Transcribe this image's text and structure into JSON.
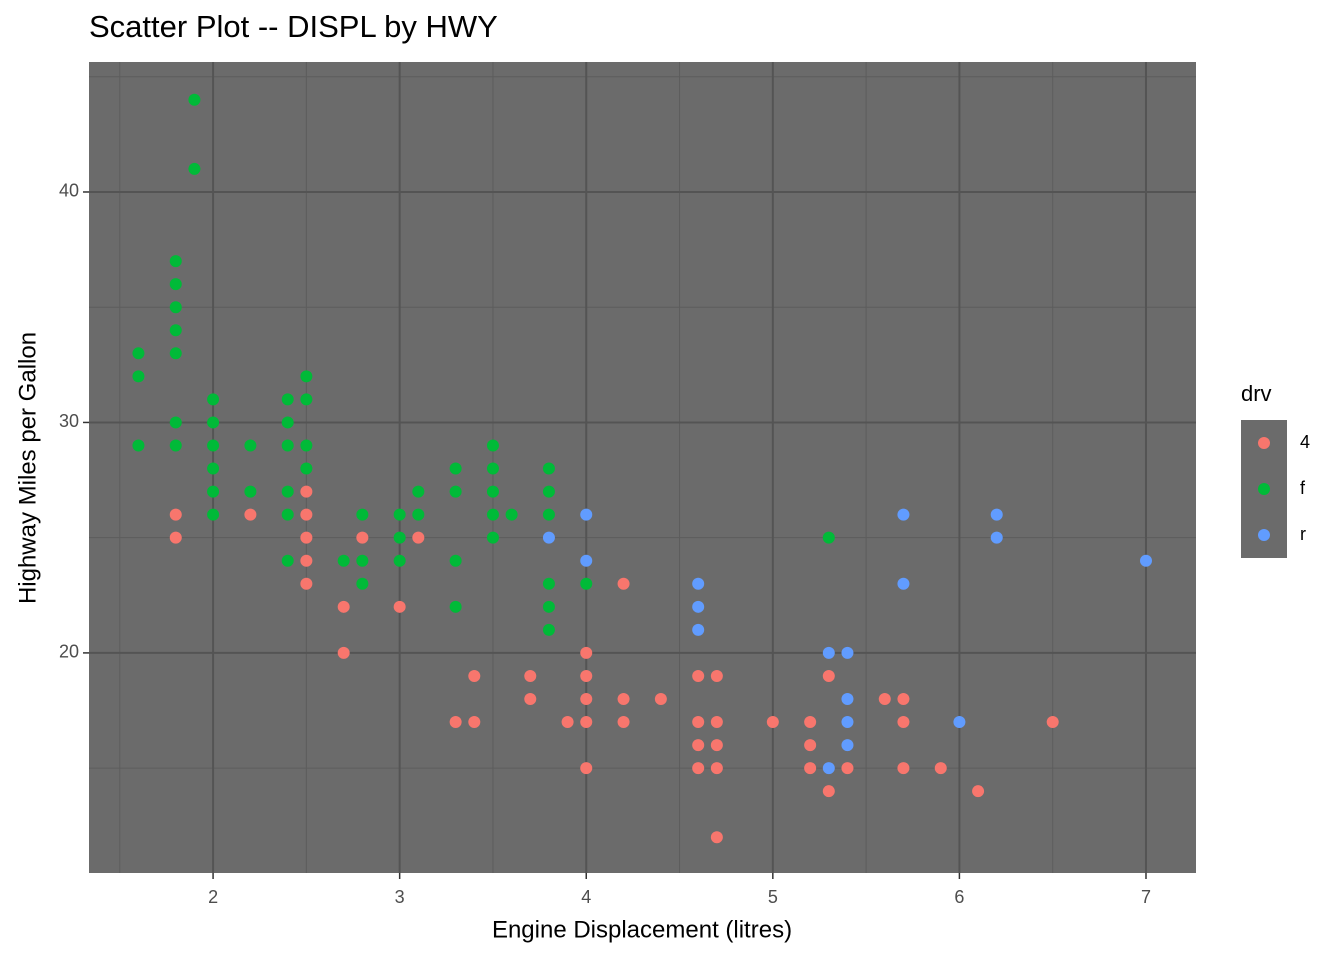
{
  "chart_data": {
    "type": "scatter",
    "title": "Scatter Plot -- DISPL by HWY",
    "x_label": "Engine Displacement (litres)",
    "y_label": "Highway Miles per Gallon",
    "legend_title": "drv",
    "legend_position": "right",
    "xlim": [
      1.335,
      7.268
    ],
    "ylim": [
      10.45,
      45.64
    ],
    "xticks": [
      2,
      3,
      4,
      5,
      6,
      7
    ],
    "yticks": [
      20,
      30,
      40
    ],
    "xminorticks": [
      1.5,
      2.5,
      3.5,
      4.5,
      5.5,
      6.5
    ],
    "yminorticks": [
      15,
      25,
      35,
      45
    ],
    "grid": true,
    "panel_color": "#6b6b6b",
    "series": [
      {
        "name": "4",
        "color": "#F8766D",
        "x": [
          1.8,
          1.8,
          2.2,
          2.5,
          2.5,
          2.5,
          2.5,
          2.5,
          2.7,
          2.7,
          2.8,
          3.0,
          3.1,
          3.3,
          3.4,
          3.4,
          3.7,
          3.7,
          3.9,
          4.0,
          4.0,
          4.0,
          4.0,
          4.0,
          4.2,
          4.2,
          4.2,
          4.4,
          4.6,
          4.6,
          4.6,
          4.6,
          4.7,
          4.7,
          4.7,
          4.7,
          4.7,
          5.0,
          5.2,
          5.2,
          5.2,
          5.3,
          5.3,
          5.4,
          5.6,
          5.7,
          5.7,
          5.7,
          5.9,
          6.1,
          6.5
        ],
        "values": [
          26,
          25,
          26,
          27,
          26,
          25,
          24,
          23,
          22,
          20,
          25,
          22,
          25,
          17,
          19,
          17,
          19,
          18,
          17,
          20,
          19,
          18,
          17,
          15,
          23,
          18,
          17,
          18,
          19,
          17,
          16,
          15,
          19,
          17,
          16,
          15,
          12,
          17,
          17,
          16,
          15,
          19,
          14,
          15,
          18,
          18,
          17,
          15,
          15,
          14,
          17
        ]
      },
      {
        "name": "f",
        "color": "#00BA38",
        "x": [
          1.6,
          1.6,
          1.6,
          1.8,
          1.8,
          1.8,
          1.8,
          1.8,
          1.8,
          1.8,
          1.9,
          1.9,
          2.0,
          2.0,
          2.0,
          2.0,
          2.0,
          2.0,
          2.2,
          2.2,
          2.4,
          2.4,
          2.4,
          2.4,
          2.4,
          2.4,
          2.5,
          2.5,
          2.5,
          2.5,
          2.7,
          2.8,
          2.8,
          2.8,
          3.0,
          3.0,
          3.0,
          3.1,
          3.1,
          3.3,
          3.3,
          3.3,
          3.3,
          3.5,
          3.5,
          3.5,
          3.5,
          3.5,
          3.6,
          3.8,
          3.8,
          3.8,
          3.8,
          3.8,
          3.8,
          4.0,
          5.3
        ],
        "values": [
          33,
          32,
          29,
          37,
          36,
          35,
          34,
          33,
          30,
          29,
          44,
          41,
          31,
          30,
          29,
          28,
          27,
          26,
          29,
          27,
          31,
          30,
          29,
          27,
          26,
          24,
          32,
          31,
          29,
          28,
          24,
          26,
          24,
          23,
          26,
          25,
          24,
          27,
          26,
          28,
          27,
          24,
          22,
          29,
          28,
          27,
          26,
          25,
          26,
          28,
          27,
          26,
          23,
          22,
          21,
          23,
          25
        ]
      },
      {
        "name": "r",
        "color": "#619CFF",
        "x": [
          3.8,
          4.0,
          4.0,
          4.6,
          4.6,
          4.6,
          5.3,
          5.3,
          5.4,
          5.4,
          5.4,
          5.4,
          5.7,
          5.7,
          6.0,
          6.2,
          6.2,
          7.0
        ],
        "values": [
          25,
          26,
          24,
          23,
          22,
          21,
          20,
          15,
          20,
          18,
          17,
          16,
          26,
          23,
          17,
          26,
          25,
          24
        ]
      }
    ]
  }
}
